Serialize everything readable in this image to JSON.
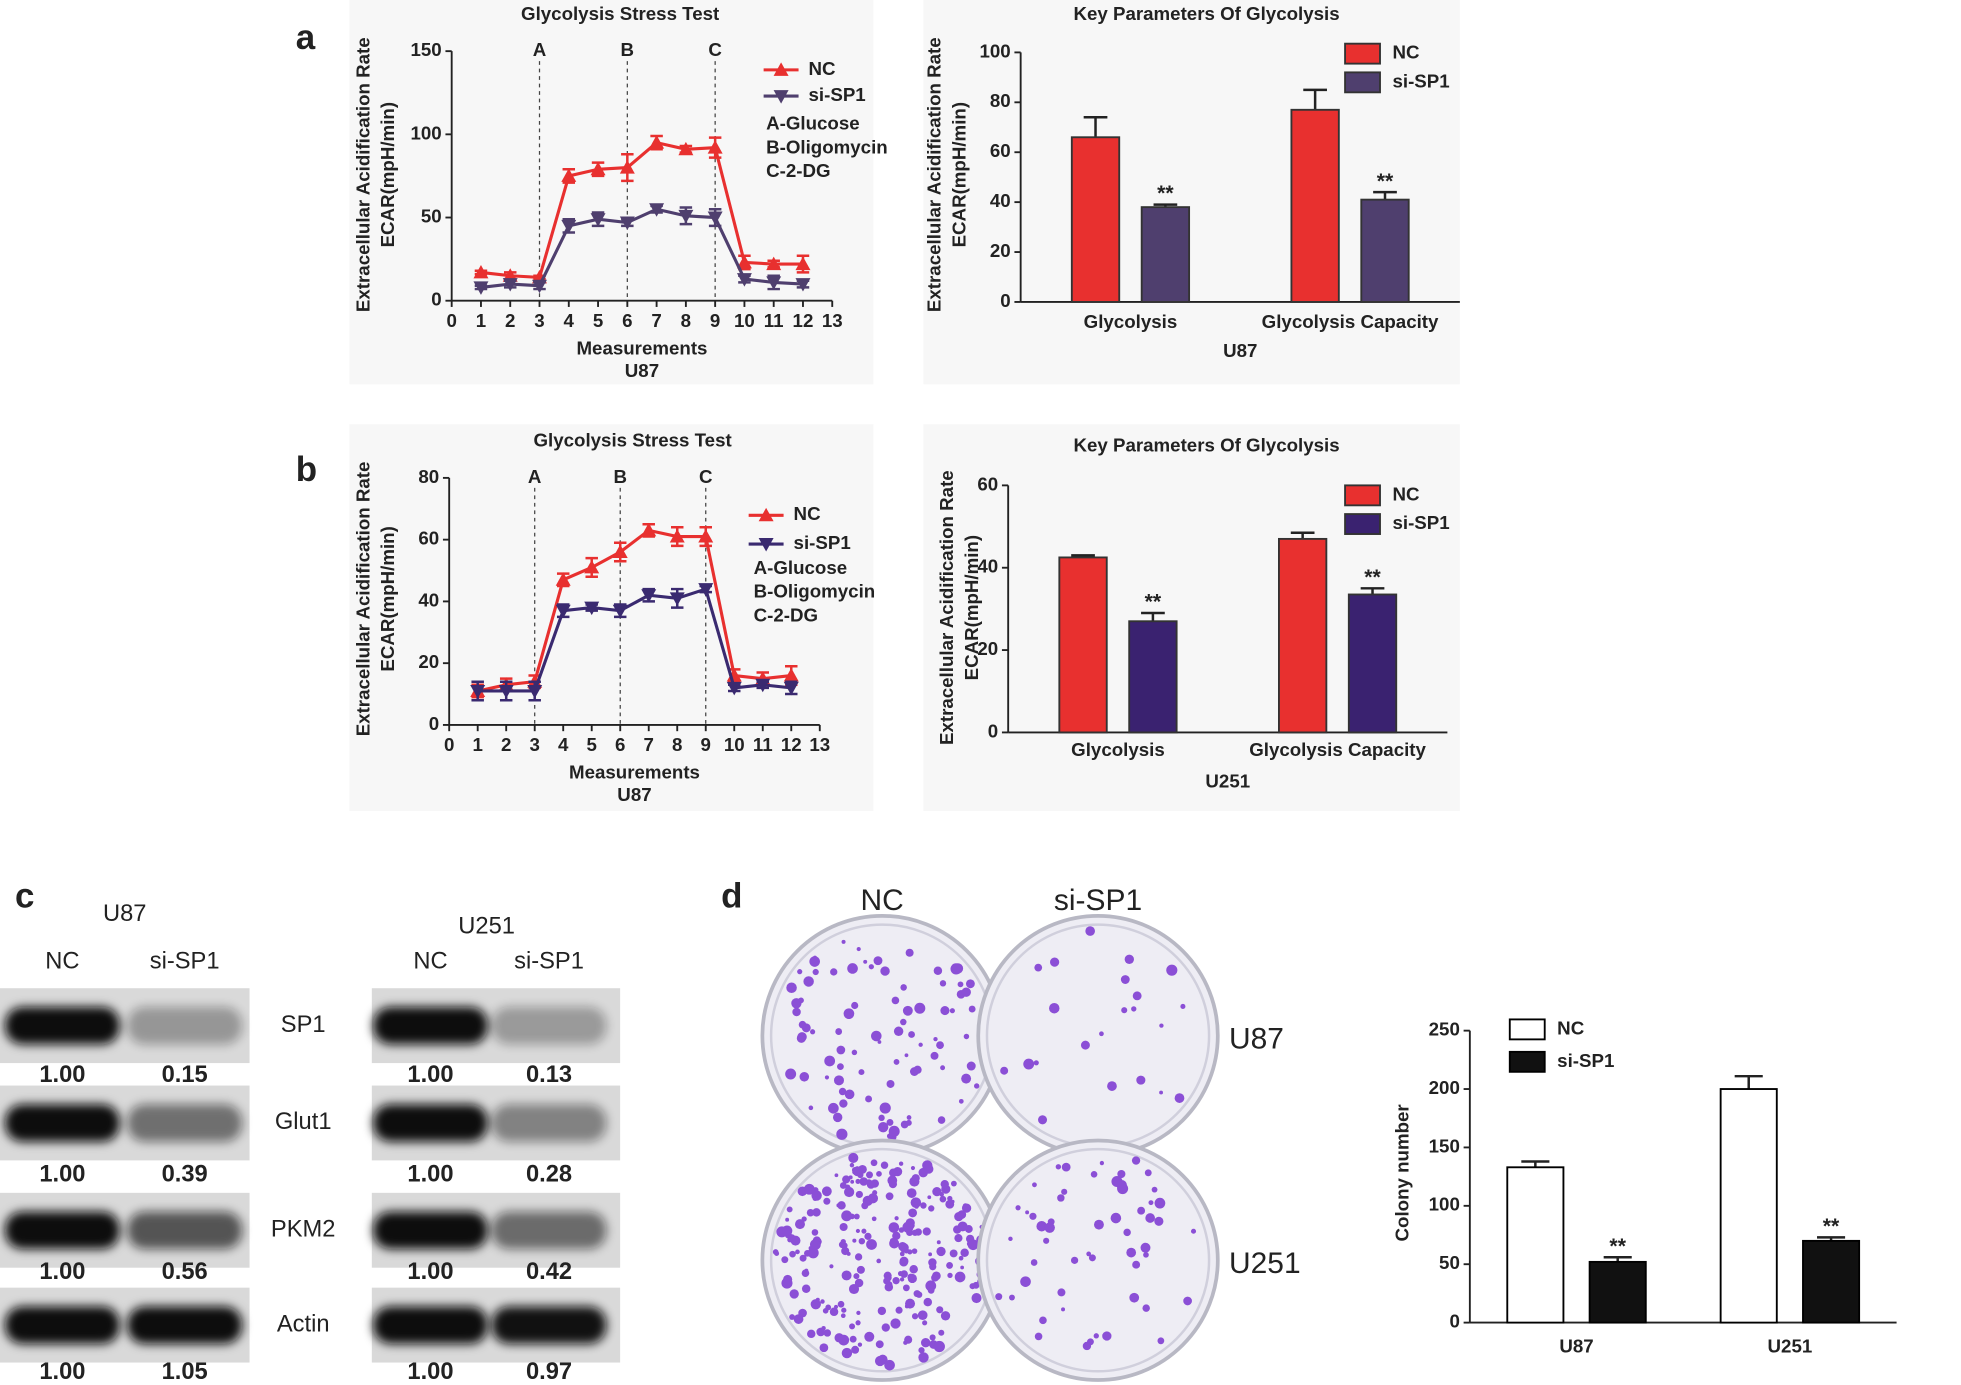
{
  "panel_labels": [
    "a",
    "b",
    "c",
    "d"
  ],
  "chart_data": [
    {
      "type": "line",
      "title": "Glycolysis Stress Test",
      "y_label": [
        "Extracellular Acidification Rate",
        "ECAR(mpH/min)"
      ],
      "x_label": "Measurements",
      "subtitle": "U87",
      "x": [
        1,
        2,
        3,
        4,
        5,
        6,
        7,
        8,
        9,
        10,
        11,
        12
      ],
      "xlim": [
        0,
        13
      ],
      "xticks": [
        0,
        1,
        2,
        3,
        4,
        5,
        6,
        7,
        8,
        9,
        10,
        11,
        12,
        13
      ],
      "ylim": [
        0,
        150
      ],
      "yticks": [
        0,
        50,
        100,
        150
      ],
      "markers": [
        {
          "x": 3,
          "label": "A"
        },
        {
          "x": 6,
          "label": "B"
        },
        {
          "x": 9,
          "label": "C"
        }
      ],
      "notes": [
        "A-Glucose",
        "B-Oligomycin",
        "C-2-DG"
      ],
      "series": [
        {
          "name": "NC",
          "color": "#e8302f",
          "marker": "triangle-up",
          "values": [
            17,
            15,
            14,
            75,
            79,
            80,
            95,
            91,
            92,
            23,
            22,
            22
          ],
          "errors": [
            1,
            2,
            1,
            4,
            4,
            8,
            4,
            2,
            6,
            4,
            2,
            5
          ]
        },
        {
          "name": "si-SP1",
          "color": "#4f3f6e",
          "marker": "triangle-down",
          "values": [
            8,
            10,
            9,
            45,
            49,
            47,
            55,
            51,
            50,
            13,
            11,
            10
          ],
          "errors": [
            1,
            2,
            2,
            4,
            4,
            2,
            2,
            5,
            5,
            2,
            4,
            2
          ]
        }
      ]
    },
    {
      "type": "bar",
      "title": "Key Parameters Of Glycolysis",
      "y_label": [
        "Extracellular Acidification Rate",
        "ECAR(mpH/min)"
      ],
      "x_label": "U87",
      "categories": [
        "Glycolysis",
        "Glycolysis Capacity"
      ],
      "ylim": [
        0,
        100
      ],
      "yticks": [
        0,
        20,
        40,
        60,
        80,
        100
      ],
      "series": [
        {
          "name": "NC",
          "color": "#e8302f",
          "values": [
            66,
            77
          ],
          "errors": [
            8,
            8
          ]
        },
        {
          "name": "si-SP1",
          "color": "#4f3f6e",
          "values": [
            38,
            41
          ],
          "errors": [
            1,
            3
          ],
          "annotations": [
            "**",
            "**"
          ]
        }
      ]
    },
    {
      "type": "line",
      "title": "Glycolysis Stress Test",
      "y_label": [
        "Extracellular Acidification Rate",
        "ECAR(mpH/min)"
      ],
      "x_label": "Measurements",
      "subtitle": "U87",
      "x": [
        1,
        2,
        3,
        4,
        5,
        6,
        7,
        8,
        9,
        10,
        11,
        12
      ],
      "xlim": [
        0,
        13
      ],
      "xticks": [
        0,
        1,
        2,
        3,
        4,
        5,
        6,
        7,
        8,
        9,
        10,
        11,
        12,
        13
      ],
      "ylim": [
        0,
        80
      ],
      "yticks": [
        0,
        20,
        40,
        60,
        80
      ],
      "markers": [
        {
          "x": 3,
          "label": "A"
        },
        {
          "x": 6,
          "label": "B"
        },
        {
          "x": 9,
          "label": "C"
        }
      ],
      "notes": [
        "A-Glucose",
        "B-Oligomycin",
        "C-2-DG"
      ],
      "series": [
        {
          "name": "NC",
          "color": "#e8302f",
          "marker": "triangle-up",
          "values": [
            11,
            13,
            14,
            47,
            51,
            56,
            63,
            61,
            61,
            16,
            15,
            16
          ],
          "errors": [
            2,
            2,
            2,
            2,
            3,
            3,
            2,
            3,
            3,
            2,
            2,
            3
          ]
        },
        {
          "name": "si-SP1",
          "color": "#3a2a70",
          "marker": "triangle-down",
          "values": [
            11,
            11,
            11,
            37,
            38,
            37,
            42,
            41,
            44,
            12,
            13,
            12
          ],
          "errors": [
            3,
            3,
            3,
            2,
            1,
            2,
            2,
            3,
            1,
            1,
            1,
            2
          ]
        }
      ]
    },
    {
      "type": "bar",
      "title": "Key Parameters Of Glycolysis",
      "y_label": [
        "Extracellular Acidification Rate",
        "ECAR(mpH/min)"
      ],
      "x_label": "U251",
      "categories": [
        "Glycolysis",
        "Glycolysis Capacity"
      ],
      "ylim": [
        0,
        60
      ],
      "yticks": [
        0,
        20,
        40,
        60
      ],
      "series": [
        {
          "name": "NC",
          "color": "#e8302f",
          "values": [
            42.5,
            47
          ],
          "errors": [
            0.5,
            1.5
          ]
        },
        {
          "name": "si-SP1",
          "color": "#3a2270",
          "values": [
            27,
            33.5
          ],
          "errors": [
            2,
            1.5
          ],
          "annotations": [
            "**",
            "**"
          ]
        }
      ]
    },
    {
      "type": "bar",
      "y_label": [
        "Colony number"
      ],
      "categories": [
        "U87",
        "U251"
      ],
      "ylim": [
        0,
        250
      ],
      "yticks": [
        0,
        50,
        100,
        150,
        200,
        250
      ],
      "series": [
        {
          "name": "NC",
          "color": "#ffffff",
          "edgecolor": "#000000",
          "values": [
            133,
            200
          ],
          "errors": [
            5,
            11
          ]
        },
        {
          "name": "si-SP1",
          "color": "#111111",
          "edgecolor": "#000000",
          "values": [
            52,
            70
          ],
          "errors": [
            4,
            3
          ],
          "annotations": [
            "**",
            "**"
          ]
        }
      ]
    }
  ],
  "western_blot": {
    "proteins": [
      "SP1",
      "Glut1",
      "PKM2",
      "Actin"
    ],
    "panels": [
      {
        "cell": "U87",
        "lanes": [
          "NC",
          "si-SP1"
        ],
        "values": [
          [
            "1.00",
            "0.15"
          ],
          [
            "1.00",
            "0.39"
          ],
          [
            "1.00",
            "0.56"
          ],
          [
            "1.00",
            "1.05"
          ]
        ]
      },
      {
        "cell": "U251",
        "lanes": [
          "NC",
          "si-SP1"
        ],
        "values": [
          [
            "1.00",
            "0.13"
          ],
          [
            "1.00",
            "0.28"
          ],
          [
            "1.00",
            "0.42"
          ],
          [
            "1.00",
            "0.97"
          ]
        ]
      }
    ]
  },
  "colony_assay": {
    "columns": [
      "NC",
      "si-SP1"
    ],
    "rows": [
      "U87",
      "U251"
    ]
  }
}
